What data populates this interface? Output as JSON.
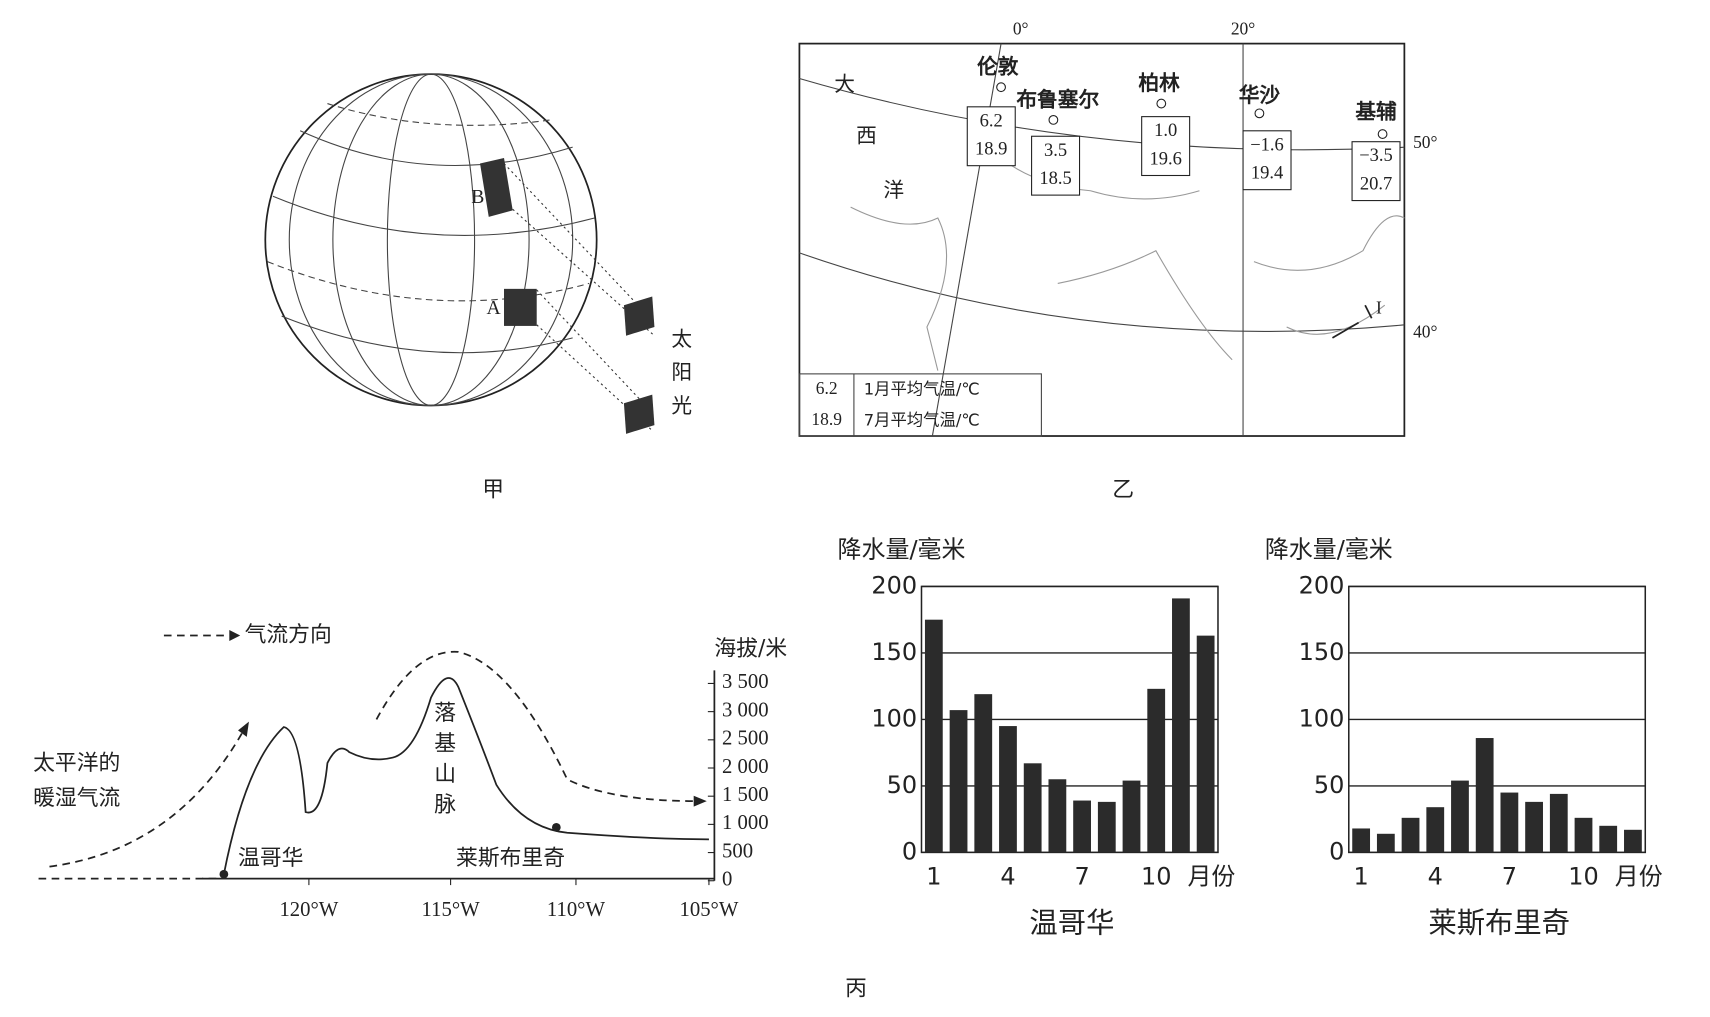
{
  "globe": {
    "caption": "甲",
    "points": [
      "B",
      "A"
    ],
    "sunlight": [
      "太",
      "阳",
      "光"
    ]
  },
  "map": {
    "caption": "乙",
    "meridians": [
      "0°",
      "20°"
    ],
    "parallels": [
      "50°",
      "40°"
    ],
    "ocean": [
      "大",
      "西",
      "洋"
    ],
    "marker": "I",
    "cities": [
      {
        "name": "伦敦",
        "jan": "6.2",
        "jul": "18.9"
      },
      {
        "name": "布鲁塞尔",
        "jan": "3.5",
        "jul": "18.5"
      },
      {
        "name": "柏林",
        "jan": "1.0",
        "jul": "19.6"
      },
      {
        "name": "华沙",
        "jan": "−1.6",
        "jul": "19.4"
      },
      {
        "name": "基辅",
        "jan": "−3.5",
        "jul": "20.7"
      }
    ],
    "legend": {
      "jan": "6.2",
      "jul": "18.9",
      "jan_label": "1月平均气温/℃",
      "jul_label": "7月平均气温/℃"
    }
  },
  "profile": {
    "caption": "丙",
    "legend": "气流方向",
    "airflow": [
      "太平洋的",
      "暖湿气流"
    ],
    "range": [
      "落",
      "基",
      "山",
      "脉"
    ],
    "places": [
      "温哥华",
      "莱斯布里奇"
    ],
    "axis_title": "海拔/米",
    "yticks": [
      0,
      500,
      {
        "value": 1000,
        "label": "1 000"
      },
      {
        "value": 1500,
        "label": "1 500"
      },
      {
        "value": 2000,
        "label": "2 000"
      },
      {
        "value": 2500,
        "label": "2 500"
      },
      {
        "value": 3000,
        "label": "3 000"
      },
      {
        "value": 3500,
        "label": "3 500"
      }
    ],
    "ylim": [
      0,
      3500
    ],
    "xticks": [
      "120°W",
      "115°W",
      "110°W",
      "105°W"
    ]
  },
  "chart_data": [
    {
      "type": "bar",
      "title": "温哥华",
      "y_label": "降水量/毫米",
      "x_label": "月份",
      "categories": [
        1,
        null,
        null,
        4,
        null,
        null,
        7,
        null,
        null,
        10,
        null,
        null
      ],
      "values": [
        175,
        107,
        119,
        95,
        67,
        55,
        39,
        38,
        54,
        123,
        191,
        163
      ],
      "color": "#2b2b2b",
      "ylim": [
        0,
        200
      ],
      "yticks": [
        0,
        50,
        100,
        150,
        200
      ],
      "grid": true
    },
    {
      "type": "bar",
      "title": "莱斯布里奇",
      "y_label": "降水量/毫米",
      "x_label": "月份",
      "categories": [
        1,
        null,
        null,
        4,
        null,
        null,
        7,
        null,
        null,
        10,
        null,
        null
      ],
      "values": [
        18,
        14,
        26,
        34,
        54,
        86,
        45,
        38,
        44,
        26,
        20,
        17
      ],
      "color": "#2b2b2b",
      "ylim": [
        0,
        200
      ],
      "yticks": [
        0,
        50,
        100,
        150,
        200
      ],
      "grid": true
    }
  ]
}
